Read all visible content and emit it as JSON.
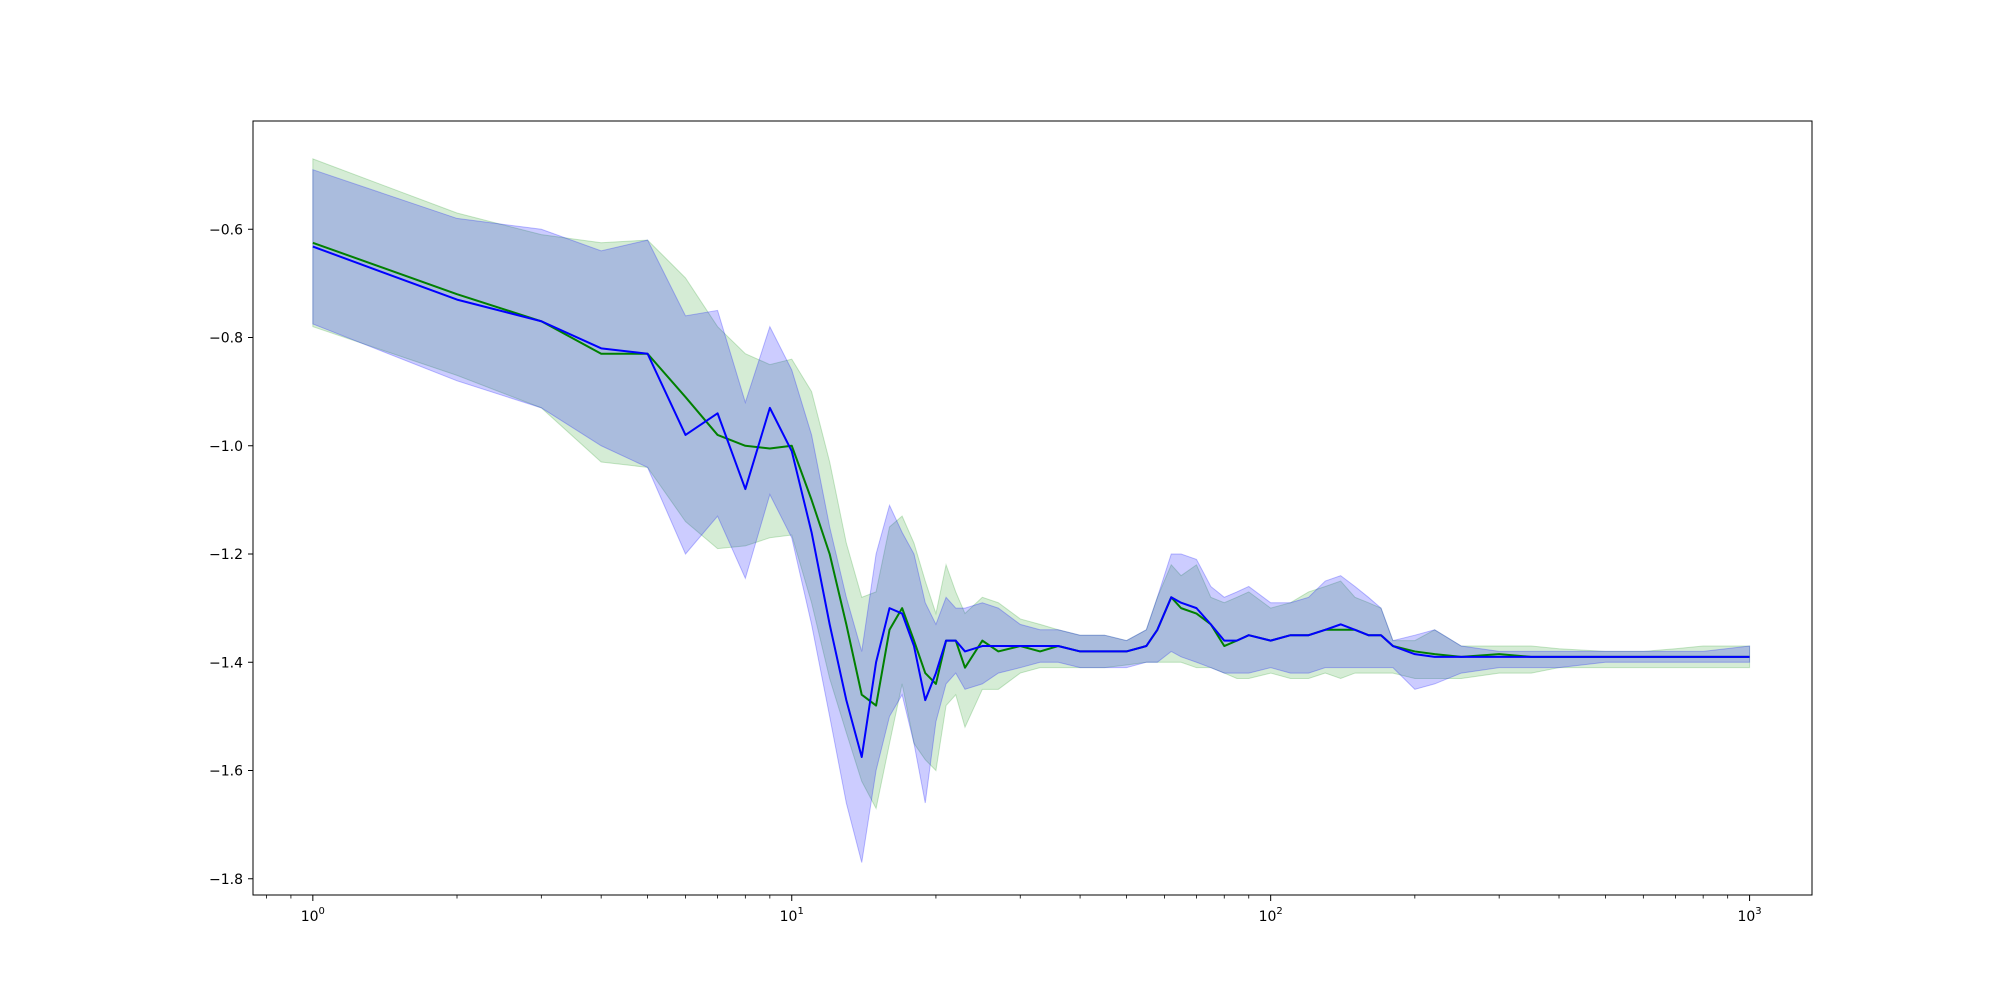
{
  "chart_data": {
    "type": "line",
    "title": "",
    "xlabel": "",
    "ylabel": "",
    "xscale": "log",
    "xlim": [
      0.75,
      1350
    ],
    "ylim": [
      -1.83,
      -0.4
    ],
    "grid": false,
    "legend": "none",
    "y_ticks": [
      -0.6,
      -0.8,
      -1.0,
      -1.2,
      -1.4,
      -1.6,
      -1.8
    ],
    "y_tick_labels": [
      "−0.6",
      "−0.8",
      "−1.0",
      "−1.2",
      "−1.4",
      "−1.6",
      "−1.8"
    ],
    "x_ticks": [
      1,
      10,
      100,
      1000
    ],
    "x_tick_labels": [
      {
        "base": "10",
        "exp": "0"
      },
      {
        "base": "10",
        "exp": "1"
      },
      {
        "base": "10",
        "exp": "2"
      },
      {
        "base": "10",
        "exp": "3"
      }
    ],
    "series": [
      {
        "color": "#008000",
        "band_color": "#2ca02c",
        "x": [
          1,
          2,
          3,
          4,
          5,
          6,
          7,
          8,
          9,
          10,
          11,
          12,
          13,
          14,
          15,
          16,
          17,
          18,
          19,
          20,
          21,
          22,
          23,
          25,
          27,
          30,
          33,
          36,
          40,
          45,
          50,
          55,
          58,
          62,
          65,
          70,
          75,
          80,
          85,
          90,
          100,
          110,
          120,
          130,
          140,
          150,
          160,
          170,
          180,
          200,
          220,
          250,
          300,
          350,
          400,
          500,
          600,
          700,
          800,
          1000
        ],
        "y": [
          -0.625,
          -0.72,
          -0.77,
          -0.83,
          -0.83,
          -0.91,
          -0.98,
          -1.0,
          -1.005,
          -1.0,
          -1.1,
          -1.2,
          -1.33,
          -1.46,
          -1.48,
          -1.34,
          -1.3,
          -1.36,
          -1.42,
          -1.44,
          -1.36,
          -1.36,
          -1.41,
          -1.36,
          -1.38,
          -1.37,
          -1.38,
          -1.37,
          -1.38,
          -1.38,
          -1.38,
          -1.37,
          -1.34,
          -1.28,
          -1.3,
          -1.31,
          -1.33,
          -1.37,
          -1.36,
          -1.35,
          -1.36,
          -1.35,
          -1.35,
          -1.34,
          -1.34,
          -1.34,
          -1.35,
          -1.35,
          -1.37,
          -1.38,
          -1.385,
          -1.39,
          -1.385,
          -1.39,
          -1.39,
          -1.39,
          -1.39,
          -1.39,
          -1.39,
          -1.39
        ],
        "upper": [
          -0.47,
          -0.57,
          -0.61,
          -0.625,
          -0.62,
          -0.69,
          -0.78,
          -0.83,
          -0.85,
          -0.84,
          -0.9,
          -1.03,
          -1.18,
          -1.28,
          -1.27,
          -1.15,
          -1.13,
          -1.18,
          -1.25,
          -1.31,
          -1.22,
          -1.27,
          -1.31,
          -1.28,
          -1.29,
          -1.32,
          -1.33,
          -1.34,
          -1.35,
          -1.35,
          -1.36,
          -1.34,
          -1.28,
          -1.22,
          -1.24,
          -1.22,
          -1.28,
          -1.29,
          -1.28,
          -1.27,
          -1.3,
          -1.29,
          -1.27,
          -1.26,
          -1.25,
          -1.28,
          -1.29,
          -1.3,
          -1.36,
          -1.36,
          -1.34,
          -1.37,
          -1.37,
          -1.37,
          -1.375,
          -1.38,
          -1.38,
          -1.375,
          -1.37,
          -1.37
        ],
        "lower": [
          -0.78,
          -0.87,
          -0.93,
          -1.03,
          -1.04,
          -1.14,
          -1.19,
          -1.185,
          -1.17,
          -1.165,
          -1.29,
          -1.43,
          -1.53,
          -1.62,
          -1.67,
          -1.55,
          -1.44,
          -1.55,
          -1.58,
          -1.6,
          -1.48,
          -1.46,
          -1.52,
          -1.45,
          -1.45,
          -1.42,
          -1.41,
          -1.41,
          -1.41,
          -1.41,
          -1.405,
          -1.4,
          -1.4,
          -1.4,
          -1.4,
          -1.41,
          -1.41,
          -1.42,
          -1.43,
          -1.43,
          -1.42,
          -1.43,
          -1.43,
          -1.42,
          -1.43,
          -1.42,
          -1.42,
          -1.42,
          -1.42,
          -1.43,
          -1.43,
          -1.43,
          -1.42,
          -1.42,
          -1.41,
          -1.41,
          -1.41,
          -1.41,
          -1.41,
          -1.41
        ]
      },
      {
        "color": "#0000ff",
        "band_color": "#0000ff",
        "x": [
          1,
          2,
          3,
          4,
          5,
          6,
          7,
          8,
          9,
          10,
          11,
          12,
          13,
          14,
          15,
          16,
          17,
          18,
          19,
          20,
          21,
          22,
          23,
          25,
          27,
          30,
          33,
          36,
          40,
          45,
          50,
          55,
          58,
          62,
          65,
          70,
          75,
          80,
          85,
          90,
          100,
          110,
          120,
          130,
          140,
          150,
          160,
          170,
          180,
          200,
          220,
          250,
          300,
          350,
          400,
          500,
          600,
          700,
          800,
          1000
        ],
        "y": [
          -0.632,
          -0.73,
          -0.77,
          -0.82,
          -0.83,
          -0.98,
          -0.94,
          -1.08,
          -0.93,
          -1.01,
          -1.16,
          -1.33,
          -1.47,
          -1.575,
          -1.4,
          -1.3,
          -1.31,
          -1.37,
          -1.47,
          -1.42,
          -1.36,
          -1.36,
          -1.38,
          -1.37,
          -1.37,
          -1.37,
          -1.37,
          -1.37,
          -1.38,
          -1.38,
          -1.38,
          -1.37,
          -1.34,
          -1.28,
          -1.29,
          -1.3,
          -1.33,
          -1.36,
          -1.36,
          -1.35,
          -1.36,
          -1.35,
          -1.35,
          -1.34,
          -1.33,
          -1.34,
          -1.35,
          -1.35,
          -1.37,
          -1.385,
          -1.39,
          -1.39,
          -1.39,
          -1.39,
          -1.39,
          -1.39,
          -1.39,
          -1.39,
          -1.39,
          -1.39
        ],
        "upper": [
          -0.49,
          -0.58,
          -0.6,
          -0.64,
          -0.62,
          -0.76,
          -0.75,
          -0.92,
          -0.78,
          -0.86,
          -0.98,
          -1.15,
          -1.28,
          -1.38,
          -1.2,
          -1.11,
          -1.16,
          -1.2,
          -1.29,
          -1.33,
          -1.28,
          -1.3,
          -1.3,
          -1.29,
          -1.3,
          -1.33,
          -1.34,
          -1.34,
          -1.35,
          -1.35,
          -1.36,
          -1.34,
          -1.28,
          -1.2,
          -1.2,
          -1.21,
          -1.26,
          -1.28,
          -1.27,
          -1.26,
          -1.29,
          -1.29,
          -1.28,
          -1.25,
          -1.24,
          -1.26,
          -1.28,
          -1.3,
          -1.36,
          -1.35,
          -1.34,
          -1.37,
          -1.38,
          -1.38,
          -1.38,
          -1.38,
          -1.38,
          -1.38,
          -1.38,
          -1.37
        ],
        "lower": [
          -0.775,
          -0.88,
          -0.93,
          -1.0,
          -1.04,
          -1.2,
          -1.13,
          -1.245,
          -1.09,
          -1.17,
          -1.33,
          -1.5,
          -1.66,
          -1.77,
          -1.6,
          -1.5,
          -1.46,
          -1.55,
          -1.66,
          -1.51,
          -1.44,
          -1.42,
          -1.45,
          -1.44,
          -1.42,
          -1.41,
          -1.4,
          -1.4,
          -1.41,
          -1.41,
          -1.41,
          -1.4,
          -1.4,
          -1.38,
          -1.39,
          -1.4,
          -1.41,
          -1.42,
          -1.42,
          -1.42,
          -1.41,
          -1.42,
          -1.42,
          -1.41,
          -1.41,
          -1.41,
          -1.41,
          -1.41,
          -1.41,
          -1.45,
          -1.44,
          -1.42,
          -1.41,
          -1.41,
          -1.41,
          -1.4,
          -1.4,
          -1.4,
          -1.4,
          -1.4
        ]
      }
    ]
  }
}
